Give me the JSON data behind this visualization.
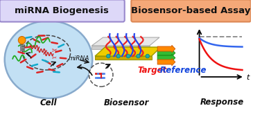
{
  "left_box_text": "miRNA Biogenesis",
  "right_box_text": "Biosensor-based Assay",
  "left_box_bg": "#ddd8f8",
  "left_box_border": "#9988cc",
  "right_box_bg": "#f5a878",
  "right_box_border": "#dd8855",
  "label_cell": "Cell",
  "label_biosensor": "Biosensor",
  "label_response": "Response",
  "target_text": "Target",
  "reference_text": "-Reference",
  "target_color": "#ee1111",
  "reference_color": "#1144dd",
  "mirna_text": "miRNA",
  "cell_fill": "#c2e0f4",
  "cell_border": "#88aacc",
  "nucleus_border": "#444444",
  "bg_color": "#ffffff"
}
